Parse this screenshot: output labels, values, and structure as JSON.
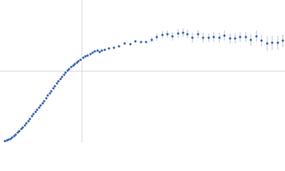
{
  "chart_data": {
    "type": "scatter",
    "color": "#3a67b0",
    "errorbar_color": "#9fb3d6",
    "xlim": [
      0,
      400
    ],
    "ylim": [
      0,
      200
    ],
    "series": [
      {
        "name": "data",
        "x": [
          7,
          10,
          12,
          15,
          17,
          20,
          22,
          25,
          27,
          30,
          32,
          35,
          37,
          40,
          42,
          45,
          47,
          50,
          52,
          55,
          57,
          60,
          62,
          65,
          67,
          70,
          72,
          75,
          77,
          80,
          82,
          85,
          87,
          90,
          92,
          95,
          97,
          100,
          103,
          105,
          108,
          110,
          113,
          117,
          120,
          123,
          127,
          130,
          133,
          137,
          140,
          143,
          147,
          153,
          160,
          167,
          175,
          183,
          190,
          198,
          205,
          213,
          220,
          228,
          235,
          242,
          250,
          257,
          263,
          270,
          278,
          285,
          293,
          300,
          308,
          315,
          323,
          330,
          337,
          345,
          352,
          360,
          367,
          375,
          382,
          390,
          397
        ],
        "values": [
          2,
          3,
          4,
          5,
          7,
          9,
          11,
          14,
          16,
          19,
          21,
          24,
          27,
          30,
          33,
          37,
          40,
          43,
          46,
          49,
          52,
          55,
          58,
          62,
          66,
          69,
          72,
          76,
          79,
          83,
          86,
          89,
          92,
          95,
          98,
          101,
          103,
          106,
          108,
          110,
          112,
          114,
          116,
          119,
          121,
          122,
          124,
          126,
          128,
          129,
          127,
          129,
          130,
          132,
          133,
          135,
          139,
          138,
          142,
          141,
          141,
          144,
          148,
          151,
          152,
          149,
          153,
          154,
          152,
          147,
          152,
          147,
          147,
          148,
          147,
          150,
          146,
          146,
          148,
          148,
          144,
          149,
          143,
          139,
          140,
          140,
          143
        ],
        "errors": [
          0,
          0,
          0,
          0,
          0,
          0,
          0,
          0,
          0,
          0,
          0,
          0,
          0,
          0,
          0,
          0,
          0,
          0,
          0,
          0,
          0,
          0,
          0,
          0,
          0,
          0,
          0,
          0,
          0,
          0,
          0,
          0,
          0,
          0,
          0,
          0,
          0,
          0,
          0,
          0,
          0,
          0,
          0,
          0,
          0,
          0,
          0,
          1,
          1,
          1,
          1,
          1,
          1,
          1,
          1,
          1,
          1,
          1,
          1,
          1,
          1,
          4,
          5,
          5,
          5,
          6,
          6,
          6,
          6,
          7,
          6,
          7,
          6,
          7,
          7,
          7,
          7,
          7,
          7,
          7,
          8,
          8,
          8,
          10,
          10,
          10,
          9
        ]
      }
    ]
  }
}
